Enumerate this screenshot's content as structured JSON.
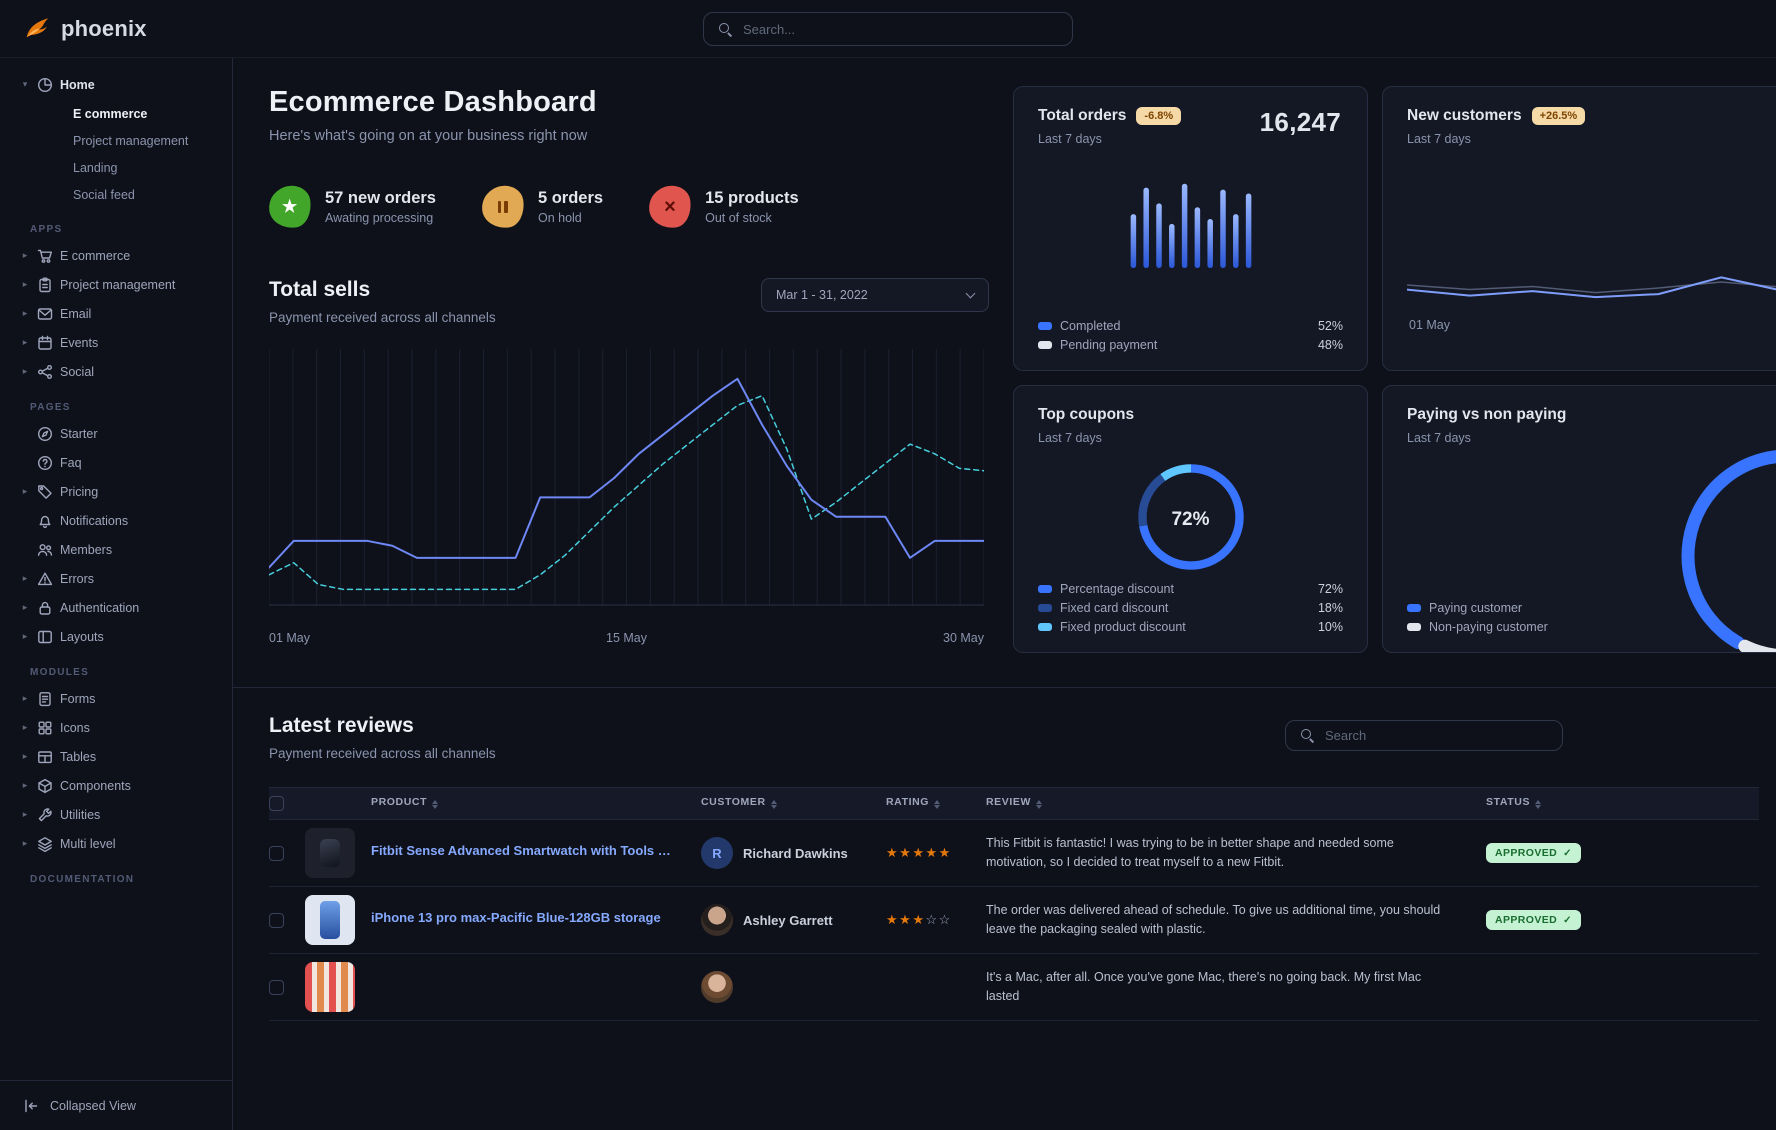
{
  "topbar": {
    "brand": "phoenix",
    "search_placeholder": "Search..."
  },
  "sidebar": {
    "home_group": {
      "label": "Home",
      "icon": "pie",
      "children": [
        {
          "label": "E commerce",
          "active": true
        },
        {
          "label": "Project management",
          "active": false
        },
        {
          "label": "Landing",
          "active": false
        },
        {
          "label": "Social feed",
          "active": false
        }
      ]
    },
    "sections": [
      {
        "title": "APPS",
        "items": [
          {
            "label": "E commerce",
            "icon": "cart",
            "caret": true
          },
          {
            "label": "Project management",
            "icon": "clipboard",
            "caret": true
          },
          {
            "label": "Email",
            "icon": "envelope",
            "caret": true
          },
          {
            "label": "Events",
            "icon": "calendar",
            "caret": true
          },
          {
            "label": "Social",
            "icon": "share",
            "caret": true
          }
        ]
      },
      {
        "title": "PAGES",
        "items": [
          {
            "label": "Starter",
            "icon": "compass",
            "caret": false
          },
          {
            "label": "Faq",
            "icon": "question",
            "caret": false
          },
          {
            "label": "Pricing",
            "icon": "tag",
            "caret": true
          },
          {
            "label": "Notifications",
            "icon": "bell",
            "caret": false
          },
          {
            "label": "Members",
            "icon": "users",
            "caret": false
          },
          {
            "label": "Errors",
            "icon": "warning",
            "caret": true
          },
          {
            "label": "Authentication",
            "icon": "lock",
            "caret": true
          },
          {
            "label": "Layouts",
            "icon": "layout",
            "caret": true
          }
        ]
      },
      {
        "title": "MODULES",
        "items": [
          {
            "label": "Forms",
            "icon": "file",
            "caret": true
          },
          {
            "label": "Icons",
            "icon": "grid",
            "caret": true
          },
          {
            "label": "Tables",
            "icon": "table",
            "caret": true
          },
          {
            "label": "Components",
            "icon": "box",
            "caret": true
          },
          {
            "label": "Utilities",
            "icon": "wrench",
            "caret": true
          },
          {
            "label": "Multi level",
            "icon": "layers",
            "caret": true
          }
        ]
      },
      {
        "title": "DOCUMENTATION",
        "items": []
      }
    ],
    "footer": {
      "label": "Collapsed View",
      "icon": "collapse"
    }
  },
  "header": {
    "title": "Ecommerce Dashboard",
    "subtitle": "Here's what's going on at your business right now"
  },
  "stats": [
    {
      "title": "57 new orders",
      "subtitle": "Awating processing",
      "icon": "star",
      "color": "#41a62a"
    },
    {
      "title": "5 orders",
      "subtitle": "On hold",
      "icon": "pause",
      "color": "#e2a954"
    },
    {
      "title": "15 products",
      "subtitle": "Out of stock",
      "icon": "xmark",
      "color": "#e0564f"
    }
  ],
  "total_sells": {
    "title": "Total sells",
    "subtitle": "Payment received across all channels",
    "date_range": "Mar 1 - 31, 2022"
  },
  "cards": {
    "total_orders": {
      "title": "Total orders",
      "badge": "-6.8%",
      "period": "Last 7 days",
      "value": "16,247",
      "legend": [
        {
          "label": "Completed",
          "value": "52%",
          "color": "#3874ff"
        },
        {
          "label": "Pending payment",
          "value": "48%",
          "color": "#e3e6ed"
        }
      ]
    },
    "new_customers": {
      "title": "New customers",
      "badge": "+26.5%",
      "period": "Last 7 days",
      "x_label": "01 May"
    },
    "top_coupons": {
      "title": "Top coupons",
      "period": "Last 7 days",
      "center_label": "72%",
      "legend": [
        {
          "label": "Percentage discount",
          "value": "72%",
          "color": "#3874ff"
        },
        {
          "label": "Fixed card discount",
          "value": "18%",
          "color": "#274b94"
        },
        {
          "label": "Fixed product discount",
          "value": "10%",
          "color": "#60c6ff"
        }
      ]
    },
    "paying": {
      "title": "Paying vs non paying",
      "period": "Last 7 days",
      "legend": [
        {
          "label": "Paying customer",
          "color": "#3874ff"
        },
        {
          "label": "Non-paying customer",
          "color": "#e3e6ed"
        }
      ]
    }
  },
  "reviews": {
    "title": "Latest reviews",
    "subtitle": "Payment received across all channels",
    "search_placeholder": "Search",
    "columns": [
      "PRODUCT",
      "CUSTOMER",
      "RATING",
      "REVIEW",
      "STATUS"
    ],
    "rows": [
      {
        "product": "Fitbit Sense Advanced Smartwatch with Tools fo...",
        "thumb": "fitbit",
        "customer": "Richard Dawkins",
        "avatar_type": "initial",
        "avatar_text": "R",
        "rating": 5,
        "review": "This Fitbit is fantastic! I was trying to be in better shape and needed some motivation, so I decided to treat myself to a new Fitbit.",
        "status": "APPROVED"
      },
      {
        "product": "iPhone 13 pro max-Pacific Blue-128GB storage",
        "thumb": "iphone",
        "customer": "Ashley Garrett",
        "avatar_type": "photo",
        "avatar_text": "",
        "rating": 3,
        "review": "The order was delivered ahead of schedule. To give us additional time, you should leave the packaging sealed with plastic.",
        "status": "APPROVED"
      },
      {
        "product": "",
        "thumb": "laptop",
        "customer": "",
        "avatar_type": "photo2",
        "avatar_text": "",
        "rating": null,
        "review": "It's a Mac, after all. Once you've gone Mac, there's no going back. My first Mac lasted",
        "status": ""
      }
    ]
  },
  "chart_data": [
    {
      "id": "total_sells",
      "type": "line",
      "title": "Total sells",
      "x_ticks": [
        "01 May",
        "15 May",
        "30 May"
      ],
      "ylim": [
        0,
        100
      ],
      "grid": "vertical",
      "series": [
        {
          "name": "current",
          "style": "solid",
          "color": "#6d87f5",
          "values": [
            13,
            24,
            24,
            24,
            24,
            22,
            17,
            17,
            17,
            17,
            17,
            42,
            42,
            42,
            50,
            60,
            68,
            76,
            84,
            91,
            72,
            55,
            41,
            34,
            34,
            34,
            17,
            24,
            24,
            24
          ]
        },
        {
          "name": "previous",
          "style": "dashed",
          "color": "#45cfdd",
          "values": [
            10,
            15,
            6,
            4,
            4,
            4,
            4,
            4,
            4,
            4,
            4,
            10,
            18,
            28,
            38,
            47,
            56,
            64,
            72,
            80,
            84,
            62,
            33,
            40,
            48,
            56,
            64,
            60,
            54,
            53
          ]
        }
      ]
    },
    {
      "id": "total_orders",
      "type": "bar",
      "values": [
        55,
        82,
        66,
        45,
        86,
        62,
        50,
        80,
        55,
        76
      ],
      "ylim": [
        0,
        100
      ]
    },
    {
      "id": "new_customers",
      "type": "line",
      "x_ticks": [
        "01 May"
      ],
      "series": [
        {
          "name": "secondary",
          "style": "solid",
          "color": "#525b75",
          "values": [
            50,
            44,
            48,
            40,
            46,
            54,
            47,
            52
          ]
        },
        {
          "name": "primary",
          "style": "solid",
          "color": "#7f9dfa",
          "values": [
            44,
            36,
            42,
            34,
            38,
            60,
            42,
            56
          ]
        }
      ]
    },
    {
      "id": "top_coupons",
      "type": "pie",
      "center_label": "72%",
      "segments": [
        {
          "label": "Percentage discount",
          "value": 72,
          "color": "#3874ff"
        },
        {
          "label": "Fixed card discount",
          "value": 18,
          "color": "#274b94"
        },
        {
          "label": "Fixed product discount",
          "value": 10,
          "color": "#60c6ff"
        }
      ]
    },
    {
      "id": "paying_vs_non_paying",
      "type": "pie",
      "segments": [
        {
          "label": "Paying customer",
          "value": 75,
          "color": "#3874ff"
        },
        {
          "label": "Non-paying customer",
          "value": 25,
          "color": "#e3e6ed"
        }
      ]
    }
  ]
}
